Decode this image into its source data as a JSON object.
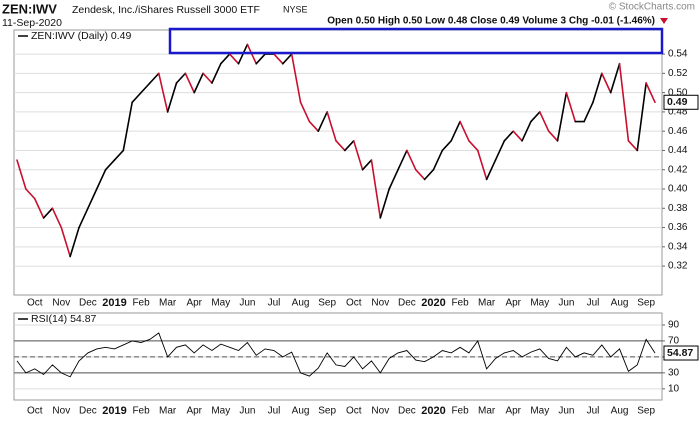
{
  "chart_data": [
    {
      "type": "line",
      "title": "ZEN:IWV",
      "subtitle": "Zendesk, Inc./iShares Russell 3000 ETF",
      "exchange": "NYSE",
      "date": "11-Sep-2020",
      "quote": "Open 0.50  High 0.50  Low 0.48  Close 0.49  Volume 3  Chg -0.01 (-1.46%)",
      "source": "© StockCharts.com",
      "categories": [
        null,
        null,
        "Oct",
        null,
        null,
        "Nov",
        null,
        null,
        "Dec",
        null,
        null,
        "2019",
        null,
        null,
        "Feb",
        null,
        null,
        "Mar",
        null,
        null,
        "Apr",
        null,
        null,
        "May",
        null,
        null,
        "Jun",
        null,
        null,
        "Jul",
        null,
        null,
        "Aug",
        null,
        null,
        "Sep",
        null,
        null,
        "Oct",
        null,
        null,
        "Nov",
        null,
        null,
        "Dec",
        null,
        null,
        "2020",
        null,
        null,
        "Feb",
        null,
        null,
        "Mar",
        null,
        null,
        "Apr",
        null,
        null,
        "May",
        null,
        null,
        "Jun",
        null,
        null,
        "Jul",
        null,
        null,
        "Aug",
        null,
        null,
        "Sep",
        null
      ],
      "series": [
        {
          "name": "ZEN:IWV (Daily) 0.49",
          "color": "#000000",
          "down_color": "#c8102e",
          "values": [
            0.43,
            0.4,
            0.39,
            0.37,
            0.38,
            0.36,
            0.33,
            0.36,
            0.38,
            0.4,
            0.42,
            0.43,
            0.44,
            0.49,
            0.5,
            0.51,
            0.52,
            0.48,
            0.51,
            0.52,
            0.5,
            0.52,
            0.51,
            0.53,
            0.54,
            0.53,
            0.55,
            0.53,
            0.54,
            0.54,
            0.53,
            0.54,
            0.49,
            0.47,
            0.46,
            0.48,
            0.45,
            0.44,
            0.45,
            0.42,
            0.43,
            0.37,
            0.4,
            0.42,
            0.44,
            0.42,
            0.41,
            0.42,
            0.44,
            0.45,
            0.47,
            0.45,
            0.44,
            0.41,
            0.43,
            0.45,
            0.46,
            0.45,
            0.47,
            0.48,
            0.46,
            0.45,
            0.5,
            0.47,
            0.47,
            0.49,
            0.52,
            0.5,
            0.53,
            0.45,
            0.44,
            0.51,
            0.49
          ]
        }
      ],
      "ylim": [
        0.29,
        0.565
      ],
      "yticks": [
        0.32,
        0.34,
        0.36,
        0.38,
        {
          "value": 0.4,
          "label": "0.40"
        },
        0.42,
        0.44,
        0.46,
        0.48,
        {
          "value": 0.5,
          "label": "0.50"
        },
        0.52,
        0.54
      ],
      "grid": true
    },
    {
      "type": "line",
      "categories": [
        null,
        null,
        "Oct",
        null,
        null,
        "Nov",
        null,
        null,
        "Dec",
        null,
        null,
        "2019",
        null,
        null,
        "Feb",
        null,
        null,
        "Mar",
        null,
        null,
        "Apr",
        null,
        null,
        "May",
        null,
        null,
        "Jun",
        null,
        null,
        "Jul",
        null,
        null,
        "Aug",
        null,
        null,
        "Sep",
        null,
        null,
        "Oct",
        null,
        null,
        "Nov",
        null,
        null,
        "Dec",
        null,
        null,
        "2020",
        null,
        null,
        "Feb",
        null,
        null,
        "Mar",
        null,
        null,
        "Apr",
        null,
        null,
        "May",
        null,
        null,
        "Jun",
        null,
        null,
        "Jul",
        null,
        null,
        "Aug",
        null,
        null,
        "Sep",
        null
      ],
      "series": [
        {
          "name": "RSI(14) 54.87",
          "color": "#000000",
          "values": [
            45,
            30,
            35,
            28,
            40,
            30,
            25,
            45,
            55,
            60,
            62,
            60,
            65,
            70,
            68,
            72,
            80,
            50,
            62,
            65,
            55,
            65,
            58,
            66,
            62,
            58,
            68,
            52,
            60,
            58,
            50,
            56,
            30,
            26,
            36,
            55,
            40,
            38,
            50,
            35,
            45,
            30,
            48,
            55,
            58,
            46,
            44,
            50,
            58,
            55,
            62,
            55,
            70,
            35,
            48,
            55,
            58,
            50,
            56,
            60,
            48,
            45,
            62,
            50,
            55,
            52,
            65,
            50,
            60,
            32,
            40,
            72,
            54.87
          ]
        }
      ],
      "ylim": [
        -4,
        105
      ],
      "yticks": [
        10,
        30,
        50,
        70,
        90
      ],
      "hlines": [
        70,
        50,
        30
      ],
      "hline_styles": [
        "solid",
        "dashed",
        "solid"
      ],
      "grid": true
    }
  ]
}
